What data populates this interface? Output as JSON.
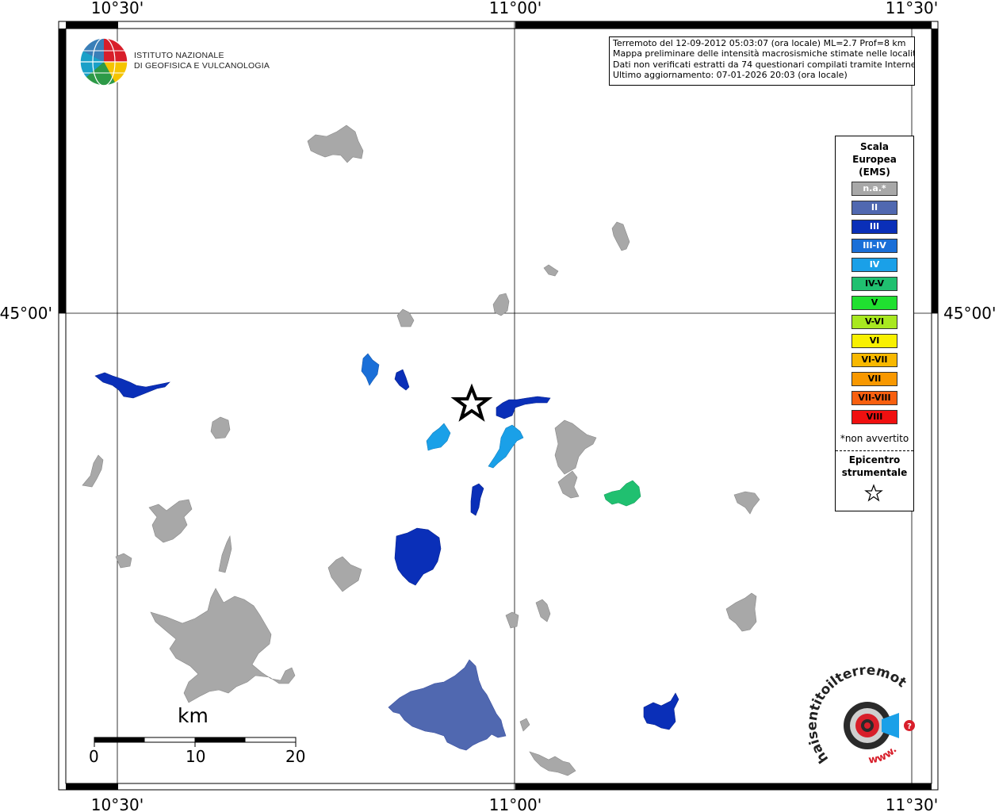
{
  "coordinates": {
    "lon_top_left": "10°30'",
    "lon_top_mid": "11°00'",
    "lon_top_right": "11°30'",
    "lon_bottom_left": "10°30'",
    "lon_bottom_mid": "11°00'",
    "lon_bottom_right": "11°30'",
    "lat_left": "45°00'",
    "lat_right": "45°00'"
  },
  "logo": {
    "line1": "ISTITUTO NAZIONALE",
    "line2": "DI GEOFISICA E VULCANOLOGIA"
  },
  "info": {
    "line1": "Terremoto del 12-09-2012 05:03:07 (ora locale) ML=2.7 Prof=8 km",
    "line2": "Mappa preliminare delle intensità macrosismiche stimate nelle località",
    "line3": "Dati non verificati estratti da 74 questionari compilati tramite Internet.",
    "line4": "Ultimo aggiornamento: 07-01-2026 20:03 (ora locale)"
  },
  "legend": {
    "title1": "Scala",
    "title2": "Europea",
    "title3": "(EMS)",
    "items": [
      {
        "label": "n.a.*",
        "color": "#a8a8a8",
        "text_color": "#ffffff"
      },
      {
        "label": "II",
        "color": "#5068b0",
        "text_color": "#ffffff"
      },
      {
        "label": "III",
        "color": "#0a2fb8",
        "text_color": "#ffffff"
      },
      {
        "label": "III-IV",
        "color": "#1a6fd8",
        "text_color": "#ffffff"
      },
      {
        "label": "IV",
        "color": "#1aa0e8",
        "text_color": "#ffffff"
      },
      {
        "label": "IV-V",
        "color": "#20c070",
        "text_color": "#000000"
      },
      {
        "label": "V",
        "color": "#20e030",
        "text_color": "#000000"
      },
      {
        "label": "V-VI",
        "color": "#a8e820",
        "text_color": "#000000"
      },
      {
        "label": "VI",
        "color": "#f8f000",
        "text_color": "#000000"
      },
      {
        "label": "VI-VII",
        "color": "#f8b800",
        "text_color": "#000000"
      },
      {
        "label": "VII",
        "color": "#f89800",
        "text_color": "#000000"
      },
      {
        "label": "VII-VIII",
        "color": "#f86010",
        "text_color": "#000000"
      },
      {
        "label": "VIII",
        "color": "#f01010",
        "text_color": "#000000"
      }
    ],
    "note": "*non avvertito",
    "epicenter1": "Epicentro",
    "epicenter2": "strumentale"
  },
  "scale_bar": {
    "unit": "km",
    "tick0": "0",
    "tick10": "10",
    "tick20": "20"
  },
  "watermark": {
    "text1": "haisentitoilterremoto.it",
    "text2": "www."
  }
}
